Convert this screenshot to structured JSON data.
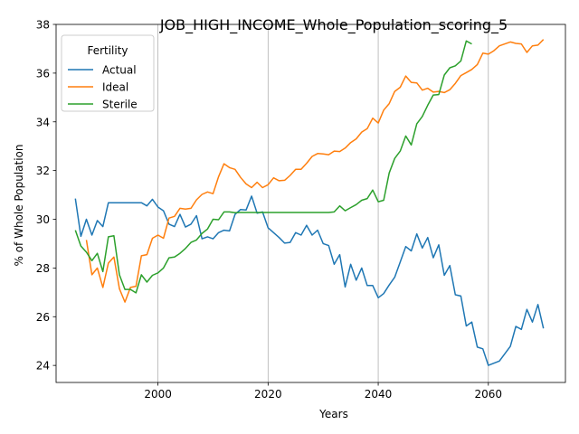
{
  "chart_data": {
    "type": "line",
    "title": "JOB_HIGH_INCOME_Whole_Population_scoring_5",
    "xlabel": "Years",
    "ylabel": "% of Whole Population",
    "xlim": [
      1981.5,
      2074
    ],
    "ylim": [
      23.3,
      38.0
    ],
    "xticks": [
      2000,
      2020,
      2040,
      2060
    ],
    "yticks": [
      24,
      26,
      28,
      30,
      32,
      34,
      36,
      38
    ],
    "grid": "x-axis only",
    "legend": {
      "title": "Fertility",
      "position": "top-left"
    },
    "series": [
      {
        "name": "Actual",
        "color": "#1f77b4",
        "points": [
          [
            1985,
            30.85
          ],
          [
            1986,
            29.3
          ],
          [
            1987,
            30.0
          ],
          [
            1988,
            29.35
          ],
          [
            1989,
            29.95
          ],
          [
            1990,
            29.7
          ],
          [
            1991,
            30.68
          ],
          [
            1992,
            30.68
          ],
          [
            1993,
            30.68
          ],
          [
            1994,
            30.68
          ],
          [
            1995,
            30.68
          ],
          [
            1996,
            30.68
          ],
          [
            1997,
            30.68
          ],
          [
            1998,
            30.55
          ],
          [
            1999,
            30.82
          ],
          [
            2000,
            30.5
          ],
          [
            2001,
            30.35
          ],
          [
            2002,
            29.8
          ],
          [
            2003,
            29.7
          ],
          [
            2004,
            30.2
          ],
          [
            2005,
            29.68
          ],
          [
            2006,
            29.8
          ],
          [
            2007,
            30.15
          ],
          [
            2008,
            29.2
          ],
          [
            2009,
            29.28
          ],
          [
            2010,
            29.2
          ],
          [
            2011,
            29.45
          ],
          [
            2012,
            29.55
          ],
          [
            2013,
            29.52
          ],
          [
            2014,
            30.2
          ],
          [
            2015,
            30.4
          ],
          [
            2016,
            30.38
          ],
          [
            2017,
            30.95
          ],
          [
            2018,
            30.25
          ],
          [
            2019,
            30.3
          ],
          [
            2020,
            29.65
          ],
          [
            2021,
            29.45
          ],
          [
            2022,
            29.25
          ],
          [
            2023,
            29.02
          ],
          [
            2024,
            29.05
          ],
          [
            2025,
            29.45
          ],
          [
            2026,
            29.35
          ],
          [
            2027,
            29.75
          ],
          [
            2028,
            29.35
          ],
          [
            2029,
            29.55
          ],
          [
            2030,
            29.0
          ],
          [
            2031,
            28.92
          ],
          [
            2032,
            28.15
          ],
          [
            2033,
            28.55
          ],
          [
            2034,
            27.22
          ],
          [
            2035,
            28.15
          ],
          [
            2036,
            27.5
          ],
          [
            2037,
            28.0
          ],
          [
            2038,
            27.28
          ],
          [
            2039,
            27.28
          ],
          [
            2040,
            26.78
          ],
          [
            2041,
            26.95
          ],
          [
            2042,
            27.3
          ],
          [
            2043,
            27.62
          ],
          [
            2044,
            28.25
          ],
          [
            2045,
            28.88
          ],
          [
            2046,
            28.7
          ],
          [
            2047,
            29.4
          ],
          [
            2048,
            28.82
          ],
          [
            2049,
            29.25
          ],
          [
            2050,
            28.42
          ],
          [
            2051,
            28.95
          ],
          [
            2052,
            27.7
          ],
          [
            2053,
            28.1
          ],
          [
            2054,
            26.9
          ],
          [
            2055,
            26.85
          ],
          [
            2056,
            25.62
          ],
          [
            2057,
            25.78
          ],
          [
            2058,
            24.75
          ],
          [
            2059,
            24.68
          ],
          [
            2060,
            24.0
          ],
          [
            2062,
            24.18
          ],
          [
            2064,
            24.78
          ],
          [
            2065,
            25.6
          ],
          [
            2066,
            25.48
          ],
          [
            2067,
            26.3
          ],
          [
            2068,
            25.78
          ],
          [
            2069,
            26.5
          ],
          [
            2070,
            25.52
          ]
        ]
      },
      {
        "name": "Ideal",
        "color": "#ff7f0e",
        "points": [
          [
            1987,
            29.15
          ],
          [
            1988,
            27.72
          ],
          [
            1989,
            28.0
          ],
          [
            1990,
            27.2
          ],
          [
            1991,
            28.2
          ],
          [
            1992,
            28.45
          ],
          [
            1993,
            27.15
          ],
          [
            1994,
            26.6
          ],
          [
            1995,
            27.2
          ],
          [
            1996,
            27.25
          ],
          [
            1997,
            28.5
          ],
          [
            1998,
            28.55
          ],
          [
            1999,
            29.22
          ],
          [
            2000,
            29.35
          ],
          [
            2001,
            29.22
          ],
          [
            2002,
            30.05
          ],
          [
            2003,
            30.12
          ],
          [
            2004,
            30.45
          ],
          [
            2005,
            30.42
          ],
          [
            2006,
            30.45
          ],
          [
            2007,
            30.8
          ],
          [
            2008,
            31.02
          ],
          [
            2009,
            31.12
          ],
          [
            2010,
            31.05
          ],
          [
            2011,
            31.75
          ],
          [
            2012,
            32.28
          ],
          [
            2013,
            32.12
          ],
          [
            2014,
            32.05
          ],
          [
            2015,
            31.72
          ],
          [
            2016,
            31.45
          ],
          [
            2017,
            31.3
          ],
          [
            2018,
            31.52
          ],
          [
            2019,
            31.3
          ],
          [
            2020,
            31.42
          ],
          [
            2021,
            31.7
          ],
          [
            2022,
            31.58
          ],
          [
            2023,
            31.6
          ],
          [
            2024,
            31.8
          ],
          [
            2025,
            32.05
          ],
          [
            2026,
            32.05
          ],
          [
            2027,
            32.3
          ],
          [
            2028,
            32.58
          ],
          [
            2029,
            32.7
          ],
          [
            2030,
            32.68
          ],
          [
            2031,
            32.65
          ],
          [
            2032,
            32.8
          ],
          [
            2033,
            32.78
          ],
          [
            2034,
            32.92
          ],
          [
            2035,
            33.15
          ],
          [
            2036,
            33.3
          ],
          [
            2037,
            33.58
          ],
          [
            2038,
            33.72
          ],
          [
            2039,
            34.15
          ],
          [
            2040,
            33.95
          ],
          [
            2041,
            34.48
          ],
          [
            2042,
            34.75
          ],
          [
            2043,
            35.25
          ],
          [
            2044,
            35.42
          ],
          [
            2045,
            35.88
          ],
          [
            2046,
            35.62
          ],
          [
            2047,
            35.6
          ],
          [
            2048,
            35.3
          ],
          [
            2049,
            35.38
          ],
          [
            2050,
            35.22
          ],
          [
            2051,
            35.25
          ],
          [
            2052,
            35.2
          ],
          [
            2053,
            35.32
          ],
          [
            2054,
            35.58
          ],
          [
            2055,
            35.9
          ],
          [
            2056,
            36.02
          ],
          [
            2057,
            36.15
          ],
          [
            2058,
            36.35
          ],
          [
            2059,
            36.82
          ],
          [
            2060,
            36.78
          ],
          [
            2061,
            36.92
          ],
          [
            2062,
            37.12
          ],
          [
            2063,
            37.2
          ],
          [
            2064,
            37.28
          ],
          [
            2065,
            37.22
          ],
          [
            2066,
            37.2
          ],
          [
            2067,
            36.85
          ],
          [
            2068,
            37.12
          ],
          [
            2069,
            37.15
          ],
          [
            2070,
            37.38
          ]
        ]
      },
      {
        "name": "Sterile",
        "color": "#2ca02c",
        "points": [
          [
            1985,
            29.55
          ],
          [
            1986,
            28.9
          ],
          [
            1987,
            28.65
          ],
          [
            1988,
            28.3
          ],
          [
            1989,
            28.6
          ],
          [
            1990,
            27.85
          ],
          [
            1991,
            29.28
          ],
          [
            1992,
            29.32
          ],
          [
            1993,
            27.72
          ],
          [
            1994,
            27.12
          ],
          [
            1995,
            27.12
          ],
          [
            1996,
            26.98
          ],
          [
            1997,
            27.72
          ],
          [
            1998,
            27.42
          ],
          [
            1999,
            27.7
          ],
          [
            2000,
            27.8
          ],
          [
            2001,
            28.0
          ],
          [
            2002,
            28.42
          ],
          [
            2003,
            28.45
          ],
          [
            2004,
            28.6
          ],
          [
            2005,
            28.8
          ],
          [
            2006,
            29.05
          ],
          [
            2007,
            29.15
          ],
          [
            2008,
            29.42
          ],
          [
            2009,
            29.6
          ],
          [
            2010,
            30.0
          ],
          [
            2011,
            29.98
          ],
          [
            2012,
            30.3
          ],
          [
            2013,
            30.3
          ],
          [
            2014,
            30.27
          ],
          [
            2015,
            30.28
          ],
          [
            2016,
            30.28
          ],
          [
            2017,
            30.28
          ],
          [
            2018,
            30.28
          ],
          [
            2019,
            30.28
          ],
          [
            2020,
            30.28
          ],
          [
            2021,
            30.28
          ],
          [
            2022,
            30.28
          ],
          [
            2023,
            30.28
          ],
          [
            2024,
            30.28
          ],
          [
            2025,
            30.28
          ],
          [
            2026,
            30.28
          ],
          [
            2027,
            30.28
          ],
          [
            2028,
            30.28
          ],
          [
            2029,
            30.28
          ],
          [
            2030,
            30.28
          ],
          [
            2031,
            30.28
          ],
          [
            2032,
            30.3
          ],
          [
            2033,
            30.55
          ],
          [
            2034,
            30.35
          ],
          [
            2035,
            30.48
          ],
          [
            2036,
            30.6
          ],
          [
            2037,
            30.78
          ],
          [
            2038,
            30.85
          ],
          [
            2039,
            31.2
          ],
          [
            2040,
            30.72
          ],
          [
            2041,
            30.78
          ],
          [
            2042,
            31.9
          ],
          [
            2043,
            32.5
          ],
          [
            2044,
            32.8
          ],
          [
            2045,
            33.42
          ],
          [
            2046,
            33.05
          ],
          [
            2047,
            33.92
          ],
          [
            2048,
            34.22
          ],
          [
            2049,
            34.68
          ],
          [
            2050,
            35.1
          ],
          [
            2051,
            35.12
          ],
          [
            2052,
            35.92
          ],
          [
            2053,
            36.22
          ],
          [
            2054,
            36.3
          ],
          [
            2055,
            36.5
          ],
          [
            2056,
            37.32
          ],
          [
            2057,
            37.2
          ]
        ]
      }
    ]
  }
}
